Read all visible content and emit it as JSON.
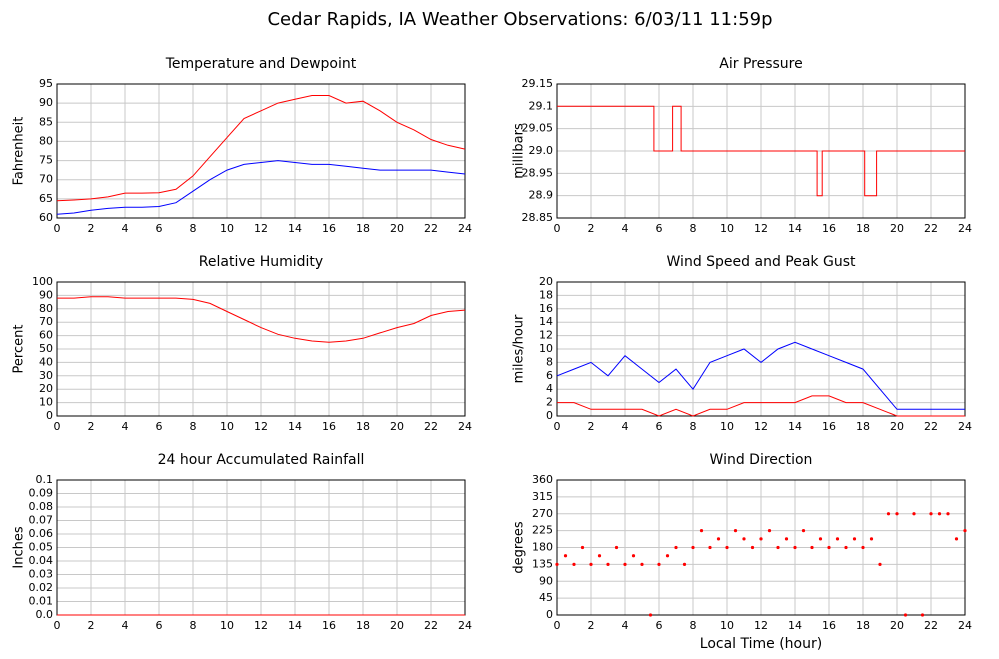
{
  "title": "Cedar Rapids, IA Weather Observations: 6/03/11 11:59p",
  "chart_data": [
    {
      "type": "line",
      "title": "Temperature and Dewpoint",
      "ylabel": "Fahrenheit",
      "x": [
        0,
        1,
        2,
        3,
        4,
        5,
        6,
        7,
        8,
        9,
        10,
        11,
        12,
        13,
        14,
        15,
        16,
        17,
        18,
        19,
        20,
        21,
        22,
        23,
        24
      ],
      "series": [
        {
          "name": "Temperature",
          "color": "#ff0000",
          "values": [
            64.5,
            64.7,
            65,
            65.5,
            66.5,
            66.5,
            66.6,
            67.5,
            71,
            76,
            81,
            86,
            88,
            90,
            91,
            92,
            92,
            90,
            90.5,
            88,
            85,
            83,
            80.5,
            79,
            78
          ]
        },
        {
          "name": "Dewpoint",
          "color": "#0000ff",
          "values": [
            61,
            61.3,
            62,
            62.5,
            62.8,
            62.8,
            63,
            64,
            67,
            70,
            72.5,
            74,
            74.5,
            75,
            74.5,
            74,
            74,
            73.5,
            73,
            72.5,
            72.5,
            72.5,
            72.5,
            72,
            71.5
          ]
        }
      ],
      "xlim": [
        0,
        24
      ],
      "xticks": [
        0,
        2,
        4,
        6,
        8,
        10,
        12,
        14,
        16,
        18,
        20,
        22,
        24
      ],
      "ylim": [
        60,
        95
      ],
      "yticks": [
        60,
        65,
        70,
        75,
        80,
        85,
        90,
        95
      ],
      "grid": true
    },
    {
      "type": "line",
      "title": "Air Pressure",
      "ylabel": "millibars",
      "x": [
        0,
        5.7,
        5.7,
        6.8,
        6.8,
        7.3,
        7.3,
        15.3,
        15.3,
        15.6,
        15.6,
        18.1,
        18.1,
        18.8,
        18.8,
        24
      ],
      "series": [
        {
          "name": "Pressure",
          "color": "#ff0000",
          "values": [
            29.1,
            29.1,
            29,
            29,
            29.1,
            29.1,
            29,
            29,
            28.9,
            28.9,
            29,
            29,
            28.9,
            28.9,
            29,
            29
          ]
        }
      ],
      "xlim": [
        0,
        24
      ],
      "xticks": [
        0,
        2,
        4,
        6,
        8,
        10,
        12,
        14,
        16,
        18,
        20,
        22,
        24
      ],
      "ylim": [
        28.85,
        29.15
      ],
      "yticks": [
        28.85,
        28.9,
        28.95,
        {
          "value": 29,
          "label": "29.0"
        },
        29.05,
        29.1,
        29.15
      ],
      "grid": true
    },
    {
      "type": "line",
      "title": "Relative Humidity",
      "ylabel": "Percent",
      "x": [
        0,
        1,
        2,
        3,
        4,
        5,
        6,
        7,
        8,
        9,
        10,
        11,
        12,
        13,
        14,
        15,
        16,
        17,
        18,
        19,
        20,
        21,
        22,
        23,
        24
      ],
      "series": [
        {
          "name": "Humidity",
          "color": "#ff0000",
          "values": [
            88,
            88,
            89,
            89,
            88,
            88,
            88,
            88,
            87,
            84,
            78,
            72,
            66,
            61,
            58,
            56,
            55,
            56,
            58,
            62,
            66,
            69,
            75,
            78,
            79
          ]
        }
      ],
      "xlim": [
        0,
        24
      ],
      "xticks": [
        0,
        2,
        4,
        6,
        8,
        10,
        12,
        14,
        16,
        18,
        20,
        22,
        24
      ],
      "ylim": [
        0,
        100
      ],
      "yticks": [
        0,
        10,
        20,
        30,
        40,
        50,
        60,
        70,
        80,
        90,
        100
      ],
      "grid": true
    },
    {
      "type": "line",
      "title": "Wind Speed and Peak Gust",
      "ylabel": "miles/hour",
      "x": [
        0,
        1,
        2,
        3,
        4,
        5,
        6,
        7,
        8,
        9,
        10,
        11,
        12,
        13,
        14,
        15,
        16,
        17,
        18,
        19,
        20,
        21,
        22,
        23,
        24
      ],
      "series": [
        {
          "name": "Peak Gust",
          "color": "#0000ff",
          "values": [
            6,
            7,
            8,
            6,
            9,
            7,
            5,
            7,
            4,
            8,
            9,
            10,
            8,
            10,
            11,
            10,
            9,
            8,
            7,
            4,
            1,
            1,
            1,
            1,
            1
          ]
        },
        {
          "name": "Wind Speed",
          "color": "#ff0000",
          "values": [
            2,
            2,
            1,
            1,
            1,
            1,
            0,
            1,
            0,
            1,
            1,
            2,
            2,
            2,
            2,
            3,
            3,
            2,
            2,
            1,
            0,
            0,
            0,
            0,
            0
          ]
        }
      ],
      "xlim": [
        0,
        24
      ],
      "xticks": [
        0,
        2,
        4,
        6,
        8,
        10,
        12,
        14,
        16,
        18,
        20,
        22,
        24
      ],
      "ylim": [
        0,
        20
      ],
      "yticks": [
        0,
        2,
        4,
        6,
        8,
        10,
        12,
        14,
        16,
        18,
        20
      ],
      "grid": true
    },
    {
      "type": "line",
      "title": "24 hour Accumulated Rainfall",
      "ylabel": "Inches",
      "x": [
        0,
        24
      ],
      "series": [
        {
          "name": "Rainfall",
          "color": "#ff0000",
          "values": [
            0,
            0
          ]
        }
      ],
      "xlim": [
        0,
        24
      ],
      "xticks": [
        0,
        2,
        4,
        6,
        8,
        10,
        12,
        14,
        16,
        18,
        20,
        22,
        24
      ],
      "ylim": [
        0,
        0.1
      ],
      "yticks": [
        {
          "value": 0,
          "label": "0.0"
        },
        0.01,
        0.02,
        0.03,
        0.04,
        0.05,
        0.06,
        0.07,
        0.08,
        0.09,
        0.1
      ],
      "grid": true
    },
    {
      "type": "scatter",
      "title": "Wind Direction",
      "ylabel": "degrees",
      "xlabel": "Local Time (hour)",
      "x": [
        0,
        0.5,
        1,
        1.5,
        2,
        2.5,
        3,
        3.5,
        4,
        4.5,
        5,
        5.5,
        6,
        6.5,
        7,
        7.5,
        8,
        8.5,
        9,
        9.5,
        10,
        10.5,
        11,
        11.5,
        12,
        12.5,
        13,
        13.5,
        14,
        14.5,
        15,
        15.5,
        16,
        16.5,
        17,
        17.5,
        18,
        18.5,
        19,
        19.5,
        20,
        20.5,
        21,
        21.5,
        22,
        22.5,
        23,
        23.5,
        24
      ],
      "series": [
        {
          "name": "Direction",
          "color": "#ff0000",
          "values": [
            135,
            158,
            135,
            180,
            135,
            158,
            135,
            180,
            135,
            158,
            135,
            0,
            135,
            158,
            180,
            135,
            180,
            225,
            180,
            203,
            180,
            225,
            203,
            180,
            203,
            225,
            180,
            203,
            180,
            225,
            180,
            203,
            180,
            203,
            180,
            203,
            180,
            203,
            135,
            270,
            270,
            0,
            270,
            0,
            270,
            270,
            270,
            203,
            225
          ]
        }
      ],
      "xlim": [
        0,
        24
      ],
      "xticks": [
        0,
        2,
        4,
        6,
        8,
        10,
        12,
        14,
        16,
        18,
        20,
        22,
        24
      ],
      "ylim": [
        0,
        360
      ],
      "yticks": [
        0,
        45,
        90,
        135,
        180,
        225,
        270,
        315,
        360
      ],
      "grid": true
    }
  ]
}
